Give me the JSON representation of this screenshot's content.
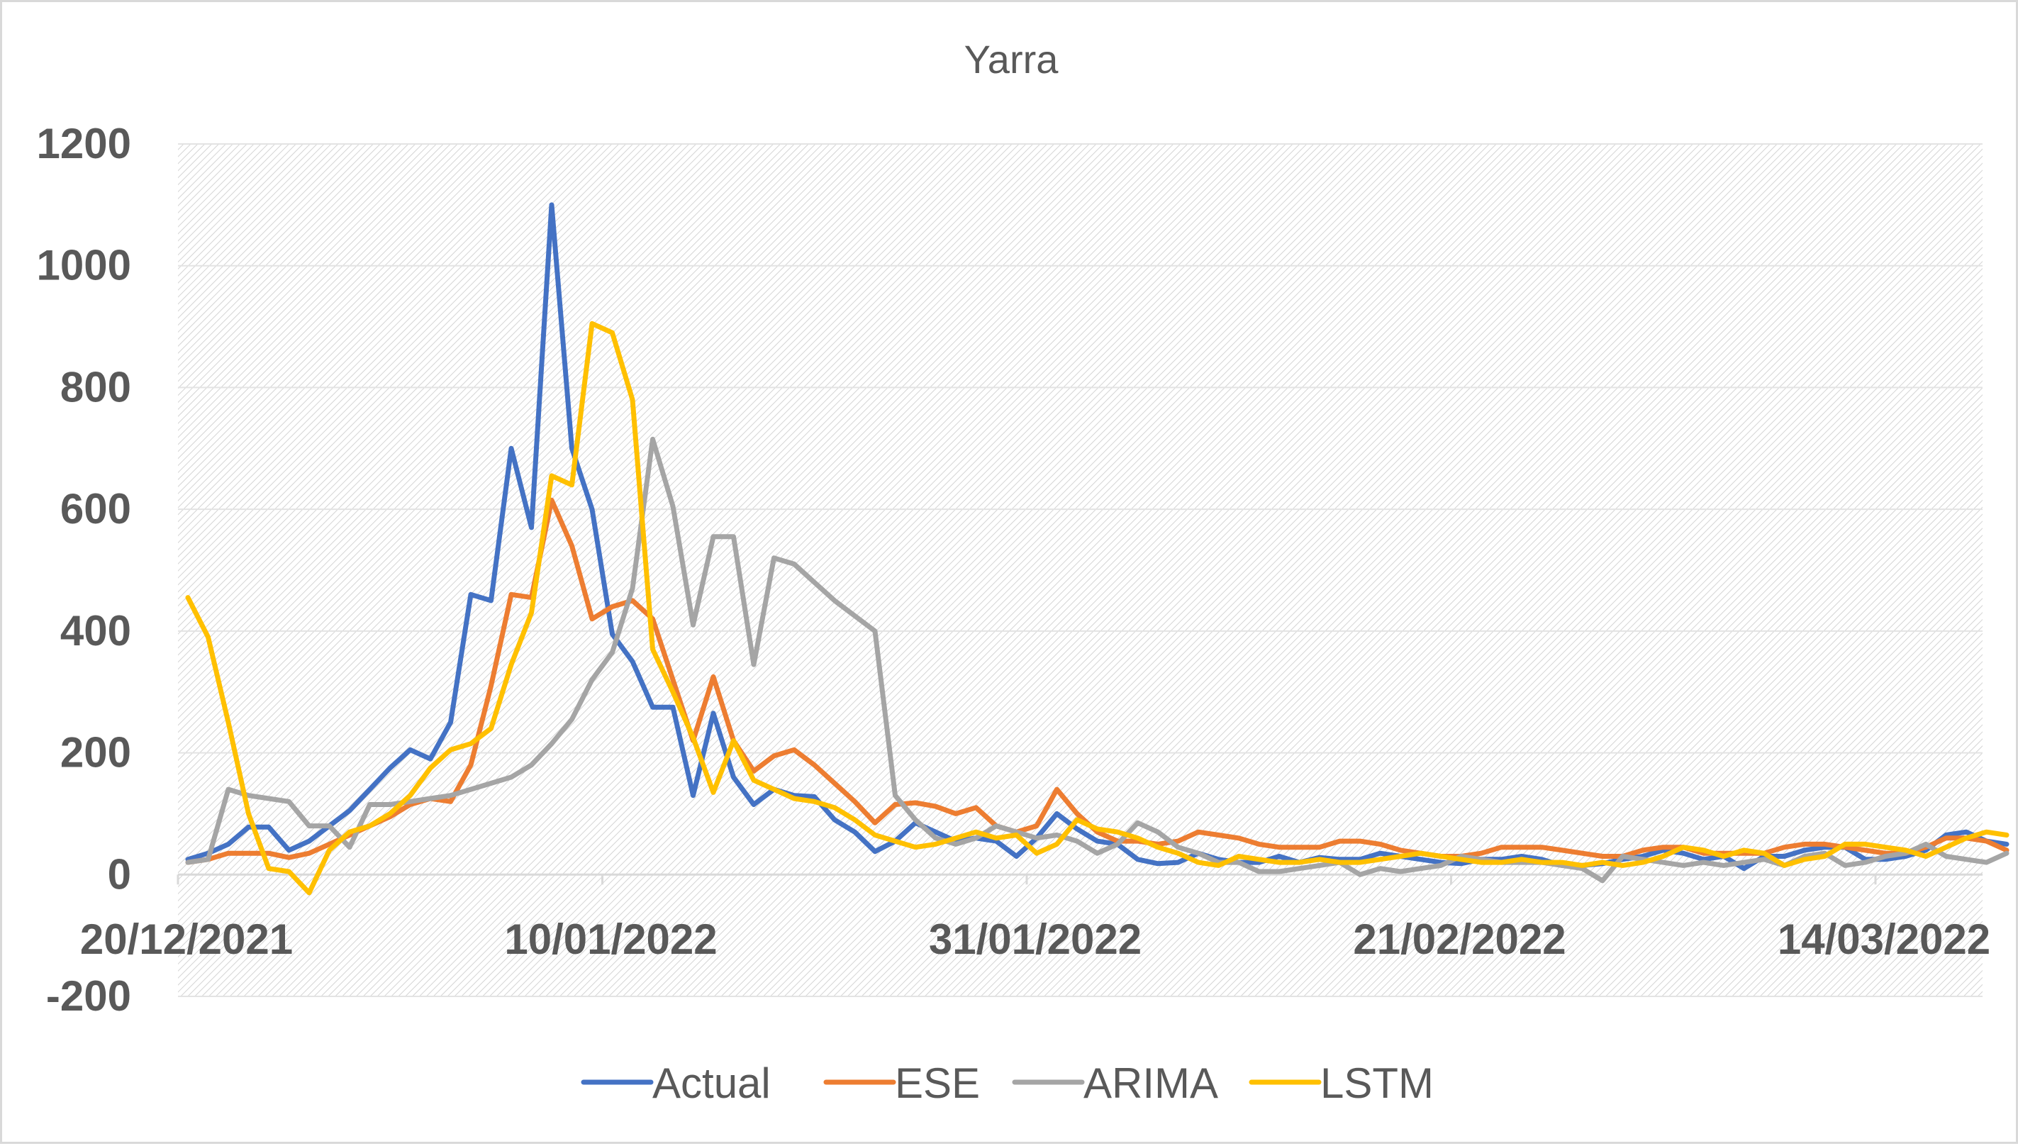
{
  "chart_data": {
    "type": "line",
    "title": "Yarra",
    "xlabel": "",
    "ylabel": "",
    "ylim": [
      -200,
      1200
    ],
    "yticks": [
      1200,
      1000,
      800,
      600,
      400,
      200,
      0,
      -200
    ],
    "x_start": "20/12/2021",
    "x_interval_days": 1,
    "xtick_labels": [
      "20/12/2021",
      "10/01/2022",
      "31/01/2022",
      "21/02/2022",
      "14/03/2022"
    ],
    "grid": true,
    "legend_position": "bottom",
    "series": [
      {
        "name": "Actual",
        "color": "#4472c4",
        "values": [
          25,
          35,
          50,
          78,
          78,
          40,
          55,
          80,
          105,
          140,
          175,
          205,
          190,
          250,
          460,
          450,
          700,
          570,
          1100,
          700,
          600,
          395,
          350,
          275,
          275,
          130,
          265,
          160,
          115,
          140,
          130,
          128,
          90,
          70,
          38,
          55,
          85,
          70,
          55,
          60,
          55,
          30,
          60,
          100,
          75,
          55,
          50,
          25,
          18,
          20,
          35,
          25,
          20,
          20,
          30,
          20,
          28,
          25,
          25,
          35,
          30,
          25,
          20,
          18,
          25,
          25,
          30,
          25,
          15,
          15,
          18,
          25,
          30,
          40,
          35,
          25,
          30,
          10,
          30,
          30,
          40,
          45,
          45,
          25,
          25,
          30,
          40,
          65,
          70,
          55,
          50
        ]
      },
      {
        "name": "ESE",
        "color": "#ed7d31",
        "values": [
          20,
          25,
          35,
          35,
          35,
          28,
          35,
          50,
          65,
          80,
          95,
          115,
          125,
          120,
          180,
          310,
          460,
          455,
          615,
          540,
          420,
          440,
          450,
          420,
          320,
          220,
          325,
          220,
          170,
          195,
          205,
          180,
          150,
          120,
          85,
          115,
          118,
          112,
          100,
          110,
          80,
          70,
          80,
          140,
          100,
          70,
          55,
          55,
          50,
          55,
          70,
          65,
          60,
          50,
          45,
          45,
          45,
          55,
          55,
          50,
          40,
          35,
          30,
          30,
          35,
          45,
          45,
          45,
          40,
          35,
          30,
          30,
          40,
          45,
          45,
          35,
          35,
          35,
          35,
          45,
          50,
          50,
          45,
          40,
          35,
          35,
          45,
          60,
          60,
          55,
          40
        ]
      },
      {
        "name": "ARIMA",
        "color": "#a5a5a5",
        "values": [
          20,
          25,
          140,
          130,
          125,
          120,
          80,
          80,
          45,
          115,
          115,
          120,
          125,
          130,
          140,
          150,
          160,
          180,
          215,
          255,
          320,
          365,
          470,
          715,
          605,
          410,
          555,
          555,
          345,
          520,
          510,
          480,
          450,
          425,
          400,
          130,
          90,
          60,
          50,
          60,
          80,
          70,
          60,
          65,
          55,
          35,
          50,
          85,
          70,
          45,
          35,
          20,
          20,
          5,
          5,
          10,
          15,
          20,
          0,
          10,
          5,
          10,
          15,
          30,
          25,
          20,
          20,
          20,
          15,
          10,
          -10,
          30,
          25,
          20,
          15,
          20,
          15,
          20,
          25,
          15,
          30,
          35,
          15,
          20,
          30,
          35,
          50,
          30,
          25,
          20,
          35
        ]
      },
      {
        "name": "LSTM",
        "color": "#ffc000",
        "values": [
          455,
          390,
          250,
          100,
          10,
          5,
          -30,
          40,
          70,
          80,
          100,
          130,
          175,
          205,
          215,
          240,
          345,
          430,
          655,
          640,
          905,
          890,
          780,
          370,
          300,
          225,
          135,
          220,
          155,
          140,
          125,
          120,
          110,
          90,
          65,
          55,
          45,
          50,
          60,
          70,
          60,
          65,
          35,
          50,
          90,
          75,
          70,
          60,
          45,
          35,
          20,
          15,
          30,
          25,
          20,
          20,
          25,
          20,
          20,
          25,
          30,
          35,
          30,
          25,
          20,
          20,
          25,
          20,
          20,
          15,
          20,
          15,
          20,
          30,
          45,
          40,
          30,
          40,
          35,
          15,
          25,
          30,
          50,
          50,
          45,
          40,
          30,
          45,
          60,
          70,
          65
        ]
      }
    ]
  }
}
